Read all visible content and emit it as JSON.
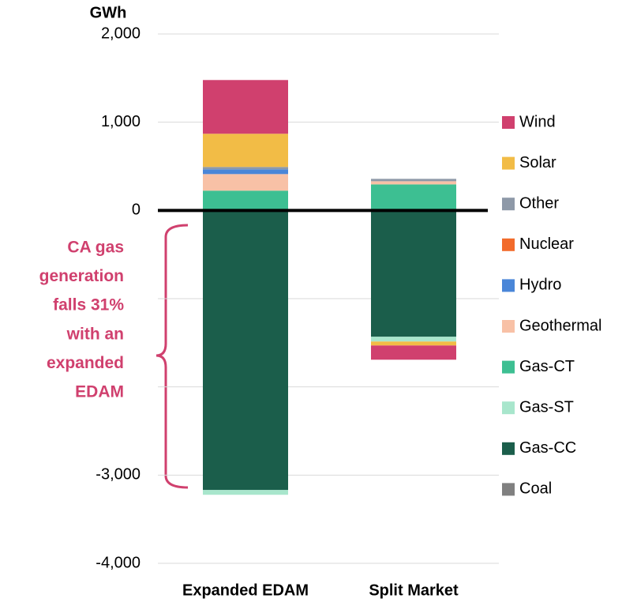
{
  "chart_data": {
    "type": "stacked_bar",
    "y_axis_label": "GWh",
    "categories": [
      "Expanded EDAM",
      "Split Market"
    ],
    "ylim": [
      -4000,
      2000
    ],
    "yticks": [
      {
        "value": 2000,
        "label": "2,000"
      },
      {
        "value": 1000,
        "label": "1,000"
      },
      0,
      {
        "value": -1000,
        "label": null
      },
      {
        "value": -2000,
        "label": null
      },
      {
        "value": -3000,
        "label": "-3,000"
      },
      {
        "value": -4000,
        "label": "-4,000"
      }
    ],
    "grid": true,
    "legend": "right",
    "series": [
      {
        "name": "Coal",
        "color": "#808080",
        "values": [
          0,
          0
        ]
      },
      {
        "name": "Gas-CC",
        "color": "#1b5e4b",
        "values": [
          -3169,
          -1432
        ]
      },
      {
        "name": "Gas-ST",
        "color": "#a8e6cc",
        "values": [
          -54,
          -54
        ]
      },
      {
        "name": "Gas-CT",
        "color": "#3dbf92",
        "values": [
          224,
          295
        ]
      },
      {
        "name": "Geothermal",
        "color": "#f8c1a6",
        "values": [
          188,
          36
        ]
      },
      {
        "name": "Hydro",
        "color": "#4a86d8",
        "values": [
          54,
          0
        ]
      },
      {
        "name": "Nuclear",
        "color": "#f26b2b",
        "values": [
          0,
          0
        ]
      },
      {
        "name": "Other",
        "color": "#8e99a8",
        "values": [
          27,
          27
        ]
      },
      {
        "name": "Solar",
        "color": "#f2bc46",
        "values": [
          376,
          -45
        ]
      },
      {
        "name": "Wind",
        "color": "#d0406e",
        "values": [
          609,
          -161
        ]
      }
    ],
    "annotation": [
      "CA gas",
      "generation",
      "falls 31%",
      "with an",
      "expanded",
      "EDAM"
    ]
  }
}
